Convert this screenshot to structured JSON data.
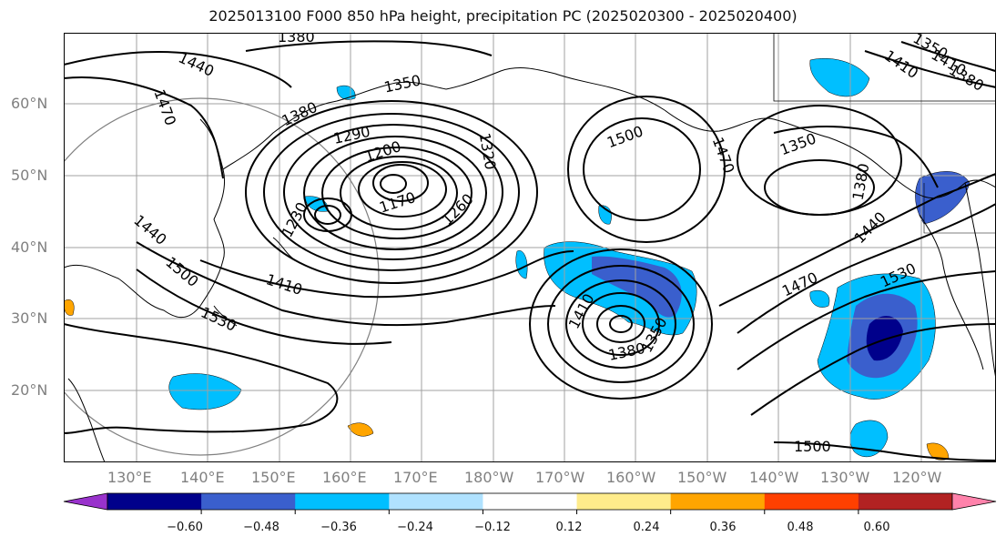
{
  "title": "2025013100 F000 850 hPa height, precipitation PC (2025020300 - 2025020400)",
  "map": {
    "lat_labels": [
      "60°N",
      "50°N",
      "40°N",
      "30°N",
      "20°N"
    ],
    "lon_labels": [
      "130°E",
      "140°E",
      "150°E",
      "160°E",
      "170°E",
      "180°W",
      "170°W",
      "160°W",
      "150°W",
      "140°W",
      "130°W",
      "120°W"
    ],
    "contour_labels": [
      "1380",
      "1440",
      "1470",
      "1350",
      "1380",
      "1290",
      "1200",
      "1170",
      "1230",
      "1260",
      "1320",
      "1500",
      "1470",
      "1350",
      "1380",
      "1410",
      "1440",
      "1440",
      "1500",
      "1410",
      "1530",
      "1410",
      "1350",
      "1380",
      "1470",
      "1530",
      "1350",
      "1410",
      "1380",
      "1500"
    ],
    "line_color": "#000000",
    "land_color": "#000000",
    "grid_color": "#a0a0a0"
  },
  "colorbar": {
    "colors": [
      "#9932cc",
      "#00008b",
      "#3a5fcd",
      "#00bfff",
      "#b0e2ff",
      "#ffffff",
      "#ffec8b",
      "#ffa500",
      "#ff4000",
      "#b22222",
      "#ff82ab"
    ],
    "ticks": [
      "−0.60",
      "−0.48",
      "−0.36",
      "−0.24",
      "−0.12",
      "0.12",
      "0.24",
      "0.36",
      "0.48",
      "0.60"
    ]
  }
}
